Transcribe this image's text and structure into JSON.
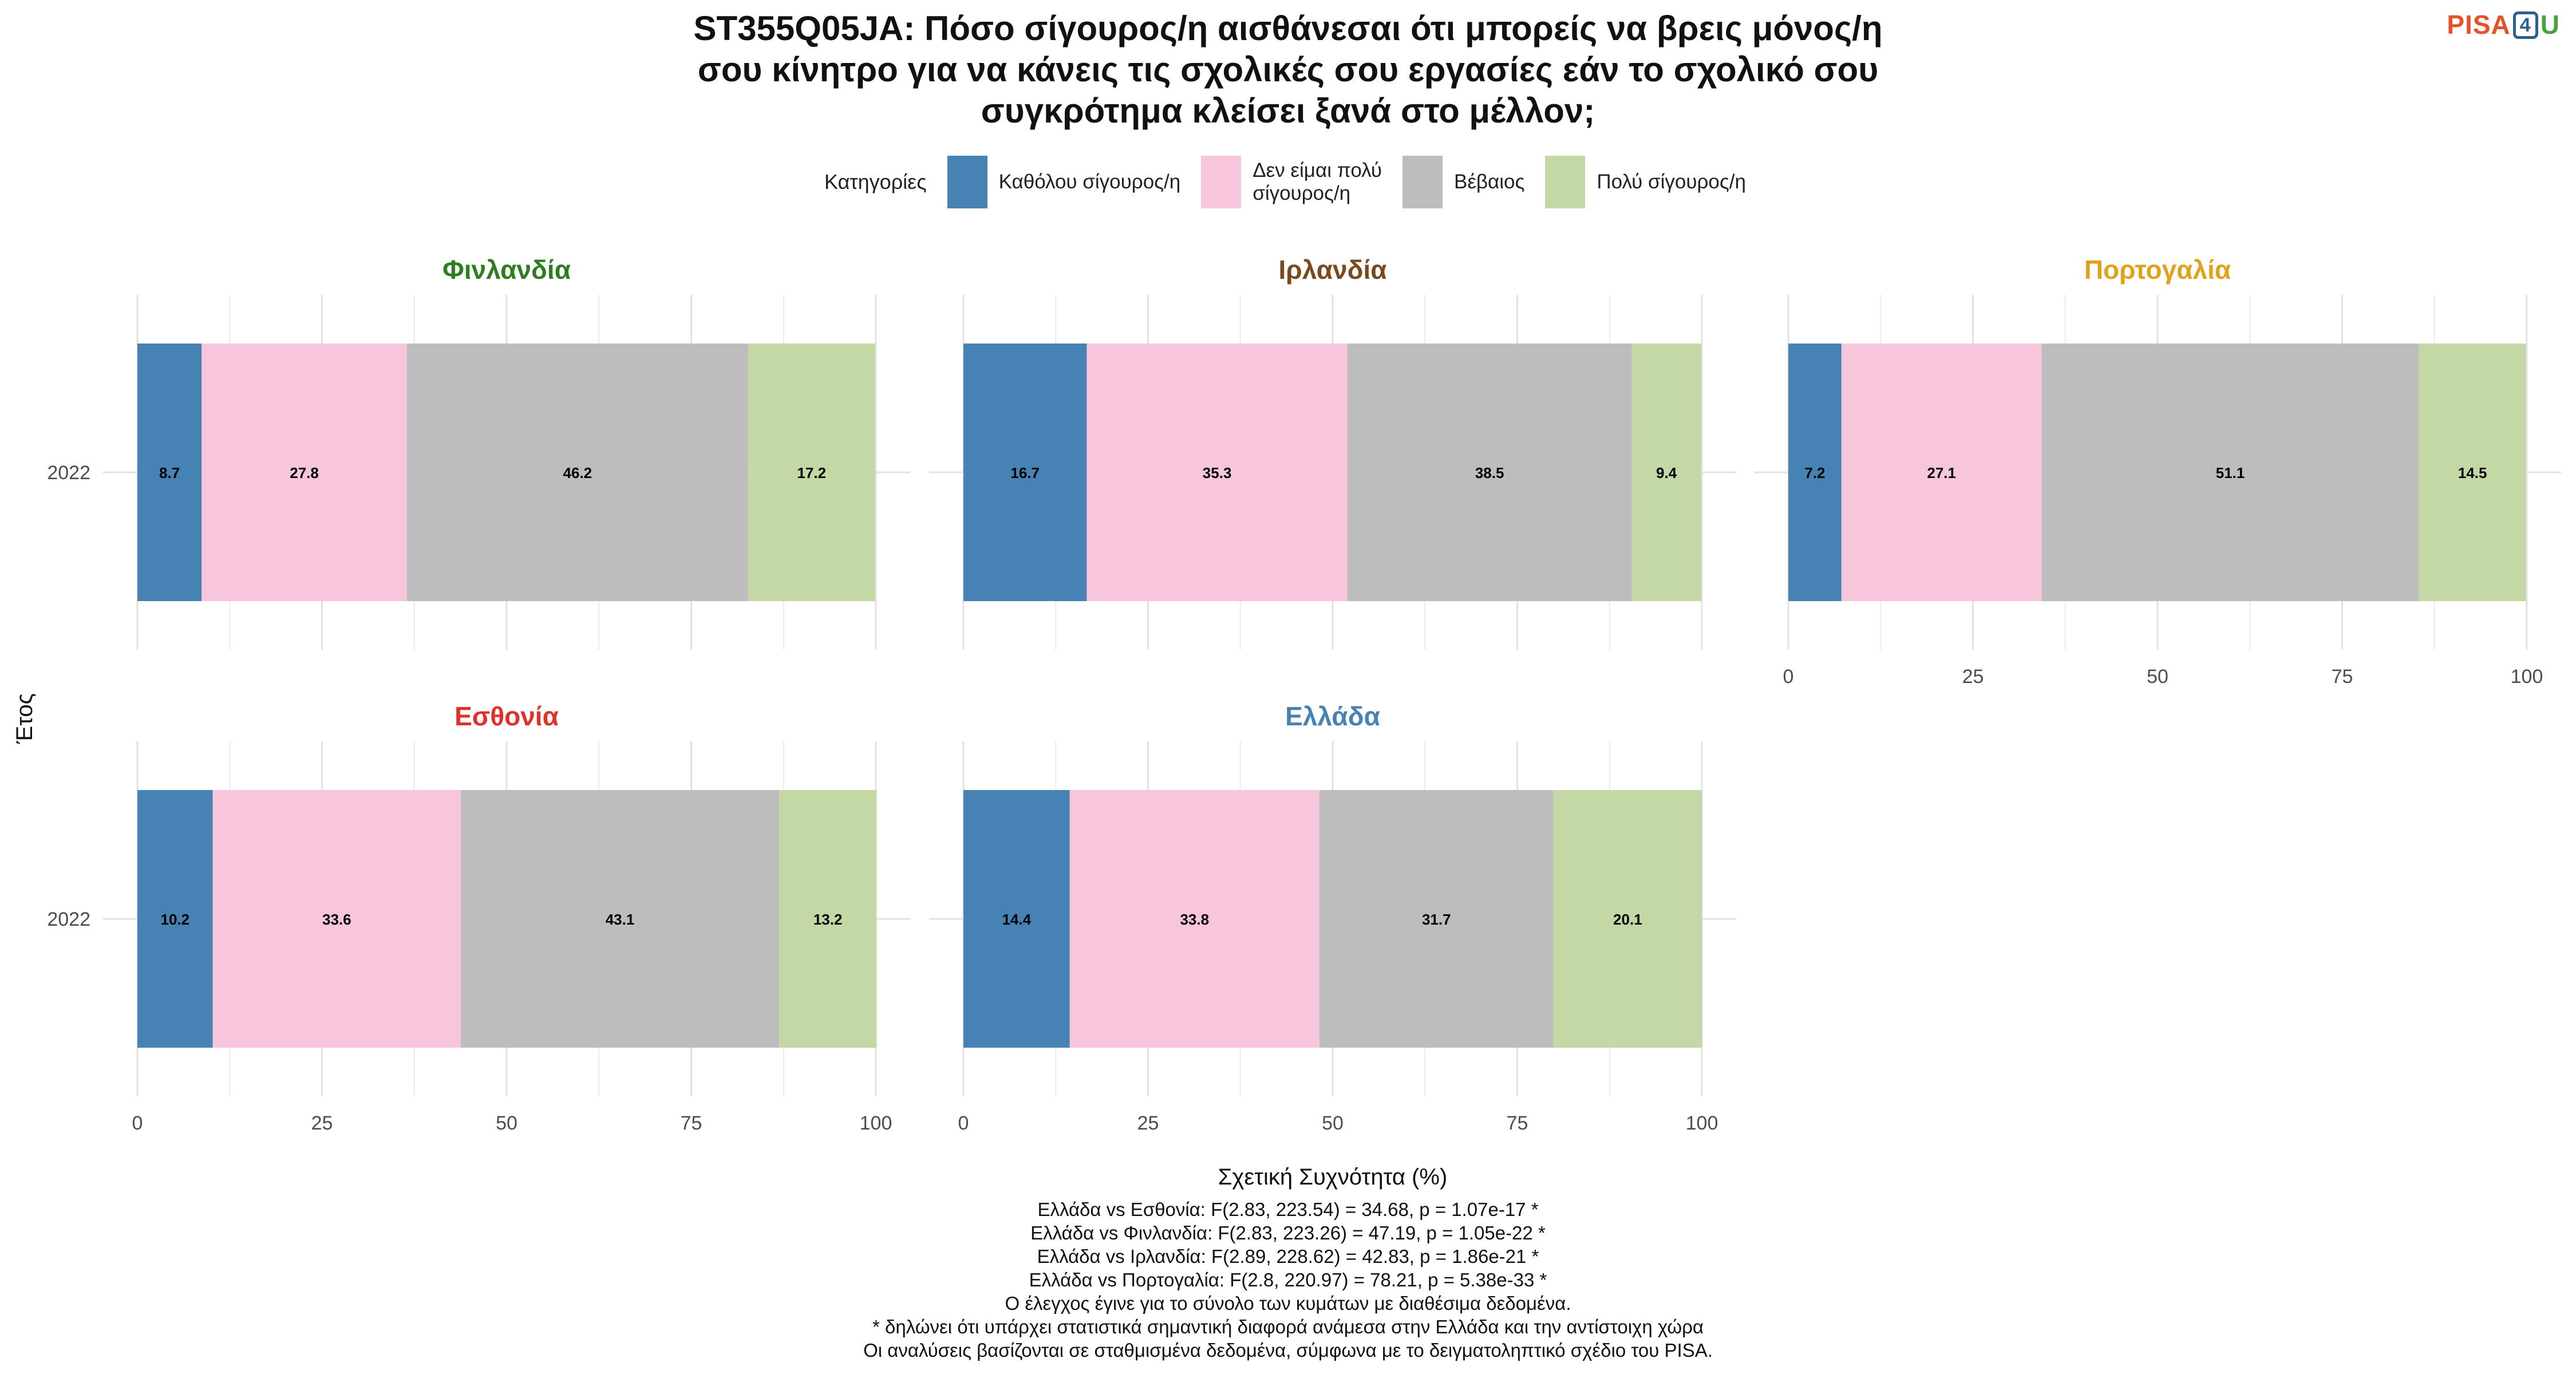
{
  "title_lines": [
    "ST355Q05JA: Πόσο σίγουρος/η αισθάνεσαι ότι μπορείς να βρεις μόνος/η",
    "σου κίνητρο για να κάνεις τις σχολικές σου εργασίες εάν το σχολικό σου",
    "συγκρότημα κλείσει ξανά στο μέλλον;"
  ],
  "logo": {
    "pisa": "PISA",
    "four": "4",
    "u": "U"
  },
  "legend": {
    "title": "Κατηγορίες",
    "items": [
      {
        "label": "Καθόλου σίγουρος/η",
        "color": "#4682b4"
      },
      {
        "label": "Δεν είμαι πολύ\nσίγουρος/η",
        "color": "#f7c6dc"
      },
      {
        "label": "Βέβαιος",
        "color": "#bdbdbd"
      },
      {
        "label": "Πολύ σίγουρος/η",
        "color": "#c4d8a6"
      }
    ]
  },
  "chart_data": {
    "type": "bar",
    "orientation": "horizontal",
    "stacked": true,
    "xlabel": "Σχετική Συχνότητα (%)",
    "ylabel": "Έτος",
    "xlim": [
      0,
      100
    ],
    "x_ticks": [
      "0",
      "25",
      "50",
      "75",
      "100"
    ],
    "grid": true,
    "legend_position": "top",
    "categories": [
      "Καθόλου σίγουρος/η",
      "Δεν είμαι πολύ σίγουρος/η",
      "Βέβαιος",
      "Πολύ σίγουρος/η"
    ],
    "colors": [
      "#4682b4",
      "#f7c6dc",
      "#bdbdbd",
      "#c4d8a6"
    ],
    "panels": [
      {
        "country": "Φινλανδία",
        "title_color": "#2e7d1f",
        "year": "2022",
        "values": [
          8.7,
          27.8,
          46.2,
          17.2
        ]
      },
      {
        "country": "Ιρλανδία",
        "title_color": "#7a4a1e",
        "year": "2022",
        "values": [
          16.7,
          35.3,
          38.5,
          9.4
        ]
      },
      {
        "country": "Πορτογαλία",
        "title_color": "#e0a21a",
        "year": "2022",
        "values": [
          7.2,
          27.1,
          51.1,
          14.5
        ]
      },
      {
        "country": "Εσθονία",
        "title_color": "#e0302a",
        "year": "2022",
        "values": [
          10.2,
          33.6,
          43.1,
          13.2
        ]
      },
      {
        "country": "Ελλάδα",
        "title_color": "#4682b4",
        "year": "2022",
        "values": [
          14.4,
          33.8,
          31.7,
          20.1
        ]
      }
    ]
  },
  "footnotes": [
    "Ελλάδα vs Εσθονία: F(2.83, 223.54) = 34.68, p = 1.07e-17 *",
    "Ελλάδα vs Φινλανδία: F(2.83, 223.26) = 47.19, p = 1.05e-22 *",
    "Ελλάδα vs Ιρλανδία: F(2.89, 228.62) = 42.83, p = 1.86e-21 *",
    "Ελλάδα vs Πορτογαλία: F(2.8, 220.97) = 78.21, p = 5.38e-33 *",
    "Ο έλεγχος έγινε για το σύνολο των κυμάτων με διαθέσιμα δεδομένα.",
    "* δηλώνει ότι υπάρχει στατιστικά σημαντική διαφορά ανάμεσα στην Ελλάδα και την αντίστοιχη χώρα",
    "Οι αναλύσεις βασίζονται σε σταθμισμένα δεδομένα, σύμφωνα με το δειγματοληπτικό σχέδιο του PISA."
  ]
}
